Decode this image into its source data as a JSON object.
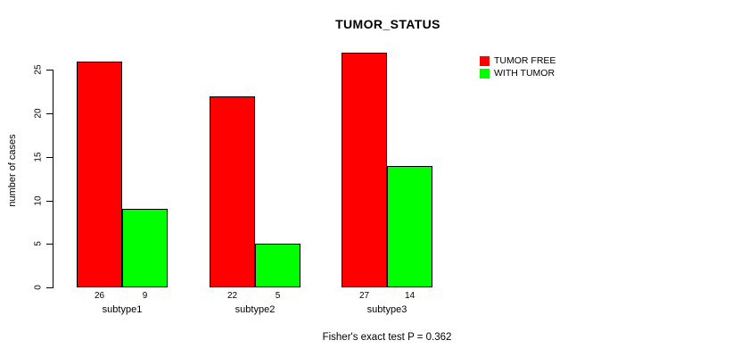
{
  "chart_data": {
    "type": "bar",
    "title": "TUMOR_STATUS",
    "xlabel": "",
    "ylabel": "number of cases",
    "categories": [
      "subtype1",
      "subtype2",
      "subtype3"
    ],
    "series": [
      {
        "name": "TUMOR FREE",
        "color": "#FF0000",
        "values": [
          26,
          22,
          27
        ]
      },
      {
        "name": "WITH TUMOR",
        "color": "#00FF00",
        "values": [
          9,
          5,
          14
        ]
      }
    ],
    "yticks": [
      0,
      5,
      10,
      15,
      20,
      25
    ],
    "ylim": [
      0,
      27
    ],
    "grid": false,
    "legend_position": "top-right",
    "value_labels_shown": true,
    "annotation": "Fisher's exact test P = 0.362"
  }
}
